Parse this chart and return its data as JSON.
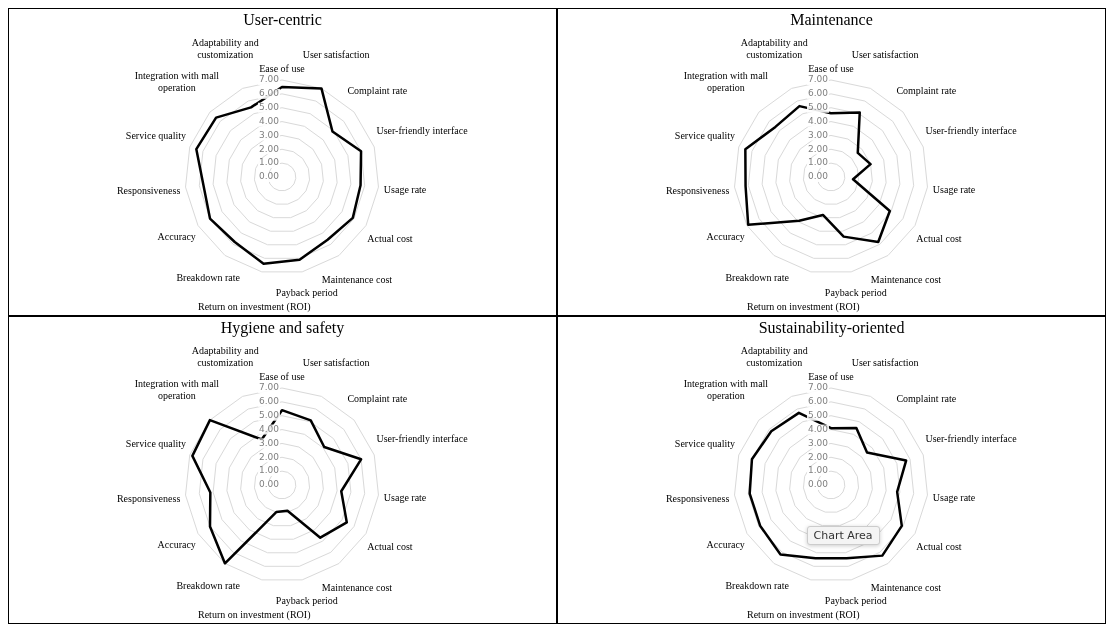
{
  "chart_data": [
    {
      "type": "radar",
      "title": "User-centric",
      "categories": [
        "Ease of use",
        "User satisfaction",
        "Complaint rate",
        "User-friendly interface",
        "Usage rate",
        "Actual cost",
        "Maintenance cost",
        "Payback period",
        "Return on investment (ROI)",
        "Breakdown rate",
        "Accuracy",
        "Responsiveness",
        "Service quality",
        "Integration with mall operation",
        "Adaptability and customization"
      ],
      "series": [
        {
          "color": "#000000",
          "values": [
            6.5,
            7.0,
            4.9,
            6.0,
            5.7,
            5.9,
            5.6,
            6.1,
            6.4,
            5.8,
            6.0,
            5.7,
            6.5,
            6.4,
            5.5
          ]
        }
      ],
      "ylim": [
        0,
        7
      ],
      "yticks": [
        {
          "value": 0,
          "label": "0.00"
        },
        {
          "value": 1,
          "label": "1.00"
        },
        {
          "value": 2,
          "label": "2.00"
        },
        {
          "value": 3,
          "label": "3.00"
        },
        {
          "value": 4,
          "label": "4.00"
        },
        {
          "value": 5,
          "label": "5.00"
        },
        {
          "value": 6,
          "label": "6.00"
        },
        {
          "value": 7,
          "label": "7.00"
        }
      ],
      "grid": true,
      "legend": false,
      "marker": "none",
      "line_style": "solid"
    },
    {
      "type": "radar",
      "title": "Maintenance",
      "categories": [
        "Ease of use",
        "User satisfaction",
        "Complaint rate",
        "User-friendly interface",
        "Usage rate",
        "Actual cost",
        "Maintenance cost",
        "Payback period",
        "Return on investment (ROI)",
        "Breakdown rate",
        "Accuracy",
        "Responsiveness",
        "Service quality",
        "Integration with mall operation",
        "Adaptability and customization"
      ],
      "series": [
        {
          "color": "#000000",
          "values": [
            4.6,
            5.1,
            2.6,
            3.0,
            1.6,
            4.9,
            5.8,
            4.4,
            2.8,
            3.9,
            6.9,
            6.2,
            6.5,
            5.4,
            5.6
          ]
        }
      ],
      "ylim": [
        0,
        7
      ],
      "yticks": [
        {
          "value": 0,
          "label": "0.00"
        },
        {
          "value": 1,
          "label": "1.00"
        },
        {
          "value": 2,
          "label": "2.00"
        },
        {
          "value": 3,
          "label": "3.00"
        },
        {
          "value": 4,
          "label": "4.00"
        },
        {
          "value": 5,
          "label": "5.00"
        },
        {
          "value": 6,
          "label": "6.00"
        },
        {
          "value": 7,
          "label": "7.00"
        }
      ],
      "grid": true,
      "legend": false,
      "marker": "none",
      "line_style": "solid"
    },
    {
      "type": "radar",
      "title": "Hygiene and safety",
      "categories": [
        "Ease of use",
        "User satisfaction",
        "Complaint rate",
        "User-friendly interface",
        "Usage rate",
        "Actual cost",
        "Maintenance cost",
        "Payback period",
        "Return on investment (ROI)",
        "Breakdown rate",
        "Accuracy",
        "Responsiveness",
        "Service quality",
        "Integration with mall operation",
        "Adaptability and customization"
      ],
      "series": [
        {
          "color": "#000000",
          "values": [
            5.4,
            5.1,
            4.1,
            6.0,
            4.3,
            5.4,
            4.7,
            1.9,
            2.0,
            7.0,
            6.0,
            5.2,
            6.8,
            7.0,
            3.6
          ]
        }
      ],
      "ylim": [
        0,
        7
      ],
      "yticks": [
        {
          "value": 0,
          "label": "0.00"
        },
        {
          "value": 1,
          "label": "1.00"
        },
        {
          "value": 2,
          "label": "2.00"
        },
        {
          "value": 3,
          "label": "3.00"
        },
        {
          "value": 4,
          "label": "4.00"
        },
        {
          "value": 5,
          "label": "5.00"
        },
        {
          "value": 6,
          "label": "6.00"
        },
        {
          "value": 7,
          "label": "7.00"
        }
      ],
      "grid": true,
      "legend": false,
      "marker": "none",
      "line_style": "solid"
    },
    {
      "type": "radar",
      "title": "Sustainability-oriented",
      "categories": [
        "Ease of use",
        "User satisfaction",
        "Complaint rate",
        "User-friendly interface",
        "Usage rate",
        "Actual cost",
        "Maintenance cost",
        "Payback period",
        "Return on investment (ROI)",
        "Breakdown rate",
        "Accuracy",
        "Responsiveness",
        "Service quality",
        "Integration with mall operation",
        "Adaptability and customization"
      ],
      "series": [
        {
          "color": "#000000",
          "values": [
            4.1,
            4.5,
            3.5,
            5.7,
            4.8,
            5.9,
            6.3,
            5.4,
            5.4,
            6.2,
            5.9,
            5.9,
            6.0,
            5.8,
            5.7
          ]
        }
      ],
      "ylim": [
        0,
        7
      ],
      "yticks": [
        {
          "value": 0,
          "label": "0.00"
        },
        {
          "value": 1,
          "label": "1.00"
        },
        {
          "value": 2,
          "label": "2.00"
        },
        {
          "value": 3,
          "label": "3.00"
        },
        {
          "value": 4,
          "label": "4.00"
        },
        {
          "value": 5,
          "label": "5.00"
        },
        {
          "value": 6,
          "label": "6.00"
        },
        {
          "value": 7,
          "label": "7.00"
        }
      ],
      "grid": true,
      "legend": false,
      "marker": "none",
      "line_style": "solid",
      "annotations": [
        "Chart Area"
      ]
    }
  ]
}
